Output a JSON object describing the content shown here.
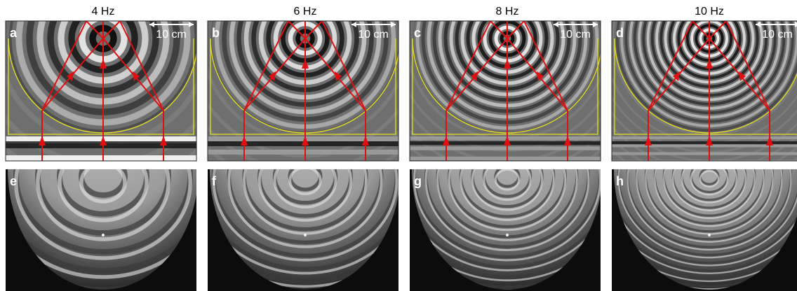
{
  "panels": [
    {
      "label": "a",
      "title": "4 Hz",
      "scale": "10 cm"
    },
    {
      "label": "b",
      "title": "6 Hz",
      "scale": "10 cm"
    },
    {
      "label": "c",
      "title": "8 Hz",
      "scale": "10 cm"
    },
    {
      "label": "d",
      "title": "10 Hz",
      "scale": "10 cm"
    }
  ],
  "photos": [
    {
      "label": "e"
    },
    {
      "label": "f"
    },
    {
      "label": "g"
    },
    {
      "label": "h"
    }
  ]
}
